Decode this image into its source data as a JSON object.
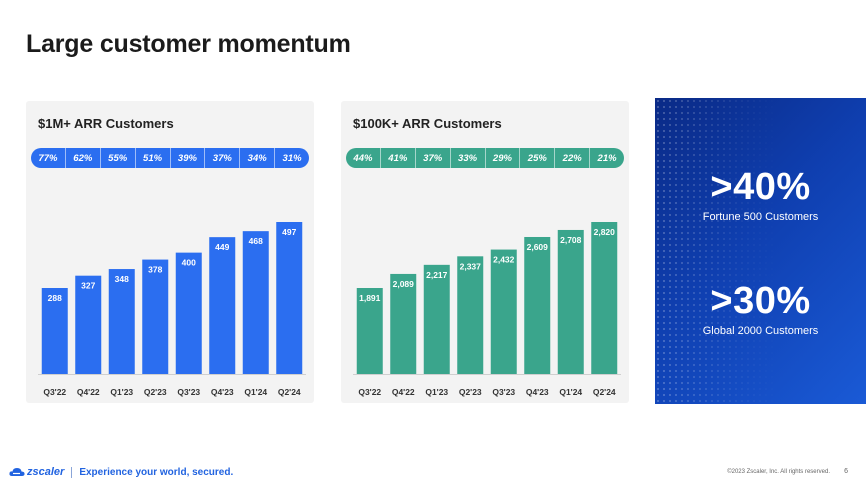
{
  "title": "Large customer momentum",
  "chart_data": [
    {
      "type": "bar",
      "title": "$1M+ ARR Customers",
      "categories": [
        "Q3'22",
        "Q4'22",
        "Q1'23",
        "Q2'23",
        "Q3'23",
        "Q4'23",
        "Q1'24",
        "Q2'24"
      ],
      "values": [
        288,
        327,
        348,
        378,
        400,
        449,
        468,
        497
      ],
      "value_labels": [
        "288",
        "327",
        "348",
        "378",
        "400",
        "449",
        "468",
        "497"
      ],
      "growth": [
        "77%",
        "62%",
        "55%",
        "51%",
        "39%",
        "37%",
        "34%",
        "31%"
      ],
      "ylim": [
        0,
        497
      ],
      "color": "#2b6ef0",
      "grid": false
    },
    {
      "type": "bar",
      "title": "$100K+ ARR Customers",
      "categories": [
        "Q3'22",
        "Q4'22",
        "Q1'23",
        "Q2'23",
        "Q3'23",
        "Q4'23",
        "Q1'24",
        "Q2'24"
      ],
      "values": [
        1891,
        2089,
        2217,
        2337,
        2432,
        2609,
        2708,
        2820
      ],
      "value_labels": [
        "1,891",
        "2,089",
        "2,217",
        "2,337",
        "2,432",
        "2,609",
        "2,708",
        "2,820"
      ],
      "growth": [
        "44%",
        "41%",
        "37%",
        "33%",
        "29%",
        "25%",
        "22%",
        "21%"
      ],
      "ylim": [
        0,
        2820
      ],
      "color": "#3aa58c",
      "grid": false
    }
  ],
  "highlights": [
    {
      "value": ">40%",
      "label": "Fortune 500 Customers"
    },
    {
      "value": ">30%",
      "label": "Global 2000 Customers"
    }
  ],
  "footer": {
    "logo": "zscaler",
    "tagline": "Experience your world, secured.",
    "copyright": "©2023 Zscaler, Inc. All rights reserved.",
    "page": "6"
  }
}
